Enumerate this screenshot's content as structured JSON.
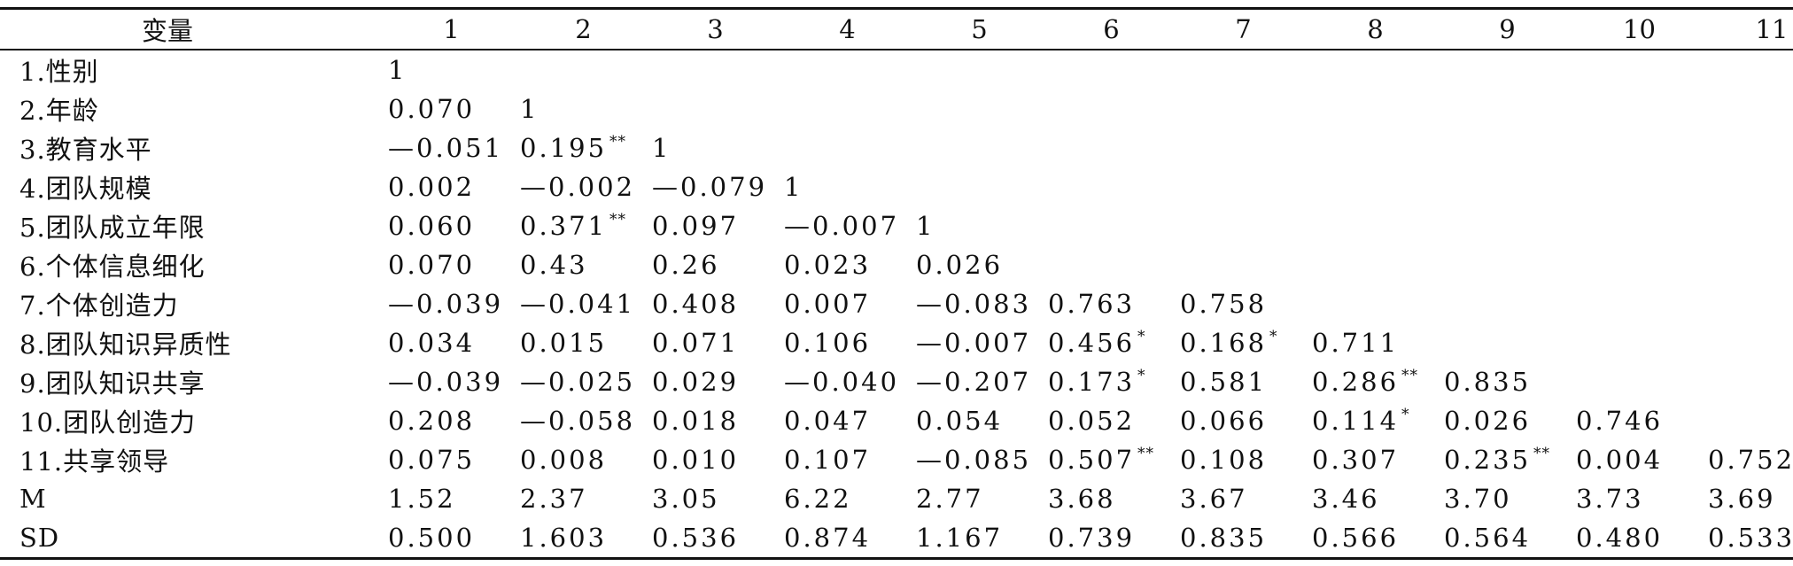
{
  "headers": [
    "变量",
    "1",
    "2",
    "3",
    "4",
    "5",
    "6",
    "7",
    "8",
    "9",
    "10",
    "11"
  ],
  "rows": [
    {
      "label": "1.性别",
      "cells": [
        {
          "v": "1"
        }
      ]
    },
    {
      "label": "2.年龄",
      "cells": [
        {
          "v": "0.070"
        },
        {
          "v": "1"
        }
      ]
    },
    {
      "label": "3.教育水平",
      "cells": [
        {
          "v": "—0.051"
        },
        {
          "v": "0.195",
          "sig": "**"
        },
        {
          "v": "1"
        }
      ]
    },
    {
      "label": "4.团队规模",
      "cells": [
        {
          "v": "0.002"
        },
        {
          "v": "—0.002"
        },
        {
          "v": "—0.079"
        },
        {
          "v": "1"
        }
      ]
    },
    {
      "label": "5.团队成立年限",
      "cells": [
        {
          "v": "0.060"
        },
        {
          "v": "0.371",
          "sig": "**"
        },
        {
          "v": "0.097"
        },
        {
          "v": "—0.007"
        },
        {
          "v": "1"
        }
      ]
    },
    {
      "label": "6.个体信息细化",
      "cells": [
        {
          "v": "0.070"
        },
        {
          "v": "0.43"
        },
        {
          "v": "0.26"
        },
        {
          "v": "0.023"
        },
        {
          "v": "0.026"
        }
      ]
    },
    {
      "label": "7.个体创造力",
      "cells": [
        {
          "v": "—0.039"
        },
        {
          "v": "—0.041"
        },
        {
          "v": "0.408"
        },
        {
          "v": "0.007"
        },
        {
          "v": "—0.083"
        },
        {
          "v": "0.763"
        },
        {
          "v": "0.758"
        }
      ]
    },
    {
      "label": "8.团队知识异质性",
      "cells": [
        {
          "v": "0.034"
        },
        {
          "v": "0.015"
        },
        {
          "v": "0.071"
        },
        {
          "v": "0.106"
        },
        {
          "v": "—0.007"
        },
        {
          "v": "0.456",
          "sig": "*"
        },
        {
          "v": "0.168",
          "sig": "*"
        },
        {
          "v": "0.711"
        }
      ]
    },
    {
      "label": "9.团队知识共享",
      "cells": [
        {
          "v": "—0.039"
        },
        {
          "v": "—0.025"
        },
        {
          "v": "0.029"
        },
        {
          "v": "—0.040"
        },
        {
          "v": "—0.207"
        },
        {
          "v": "0.173",
          "sig": "*"
        },
        {
          "v": "0.581"
        },
        {
          "v": "0.286",
          "sig": "**"
        },
        {
          "v": "0.835"
        }
      ]
    },
    {
      "label": "10.团队创造力",
      "cells": [
        {
          "v": "0.208"
        },
        {
          "v": "—0.058"
        },
        {
          "v": "0.018"
        },
        {
          "v": "0.047"
        },
        {
          "v": "0.054"
        },
        {
          "v": "0.052"
        },
        {
          "v": "0.066"
        },
        {
          "v": "0.114",
          "sig": "*"
        },
        {
          "v": "0.026"
        },
        {
          "v": "0.746"
        }
      ]
    },
    {
      "label": "11.共享领导",
      "cells": [
        {
          "v": "0.075"
        },
        {
          "v": "0.008"
        },
        {
          "v": "0.010"
        },
        {
          "v": "0.107"
        },
        {
          "v": "—0.085"
        },
        {
          "v": "0.507",
          "sig": "**"
        },
        {
          "v": "0.108"
        },
        {
          "v": "0.307"
        },
        {
          "v": "0.235",
          "sig": "**"
        },
        {
          "v": "0.004"
        },
        {
          "v": "0.752"
        }
      ]
    },
    {
      "label": "M",
      "cells": [
        {
          "v": "1.52"
        },
        {
          "v": "2.37"
        },
        {
          "v": "3.05"
        },
        {
          "v": "6.22"
        },
        {
          "v": "2.77"
        },
        {
          "v": "3.68"
        },
        {
          "v": "3.67"
        },
        {
          "v": "3.46"
        },
        {
          "v": "3.70"
        },
        {
          "v": "3.73"
        },
        {
          "v": "3.69"
        }
      ]
    },
    {
      "label": "SD",
      "cells": [
        {
          "v": "0.500"
        },
        {
          "v": "1.603"
        },
        {
          "v": "0.536"
        },
        {
          "v": "0.874"
        },
        {
          "v": "1.167"
        },
        {
          "v": "0.739"
        },
        {
          "v": "0.835"
        },
        {
          "v": "0.566"
        },
        {
          "v": "0.564"
        },
        {
          "v": "0.480"
        },
        {
          "v": "0.533"
        }
      ]
    }
  ]
}
